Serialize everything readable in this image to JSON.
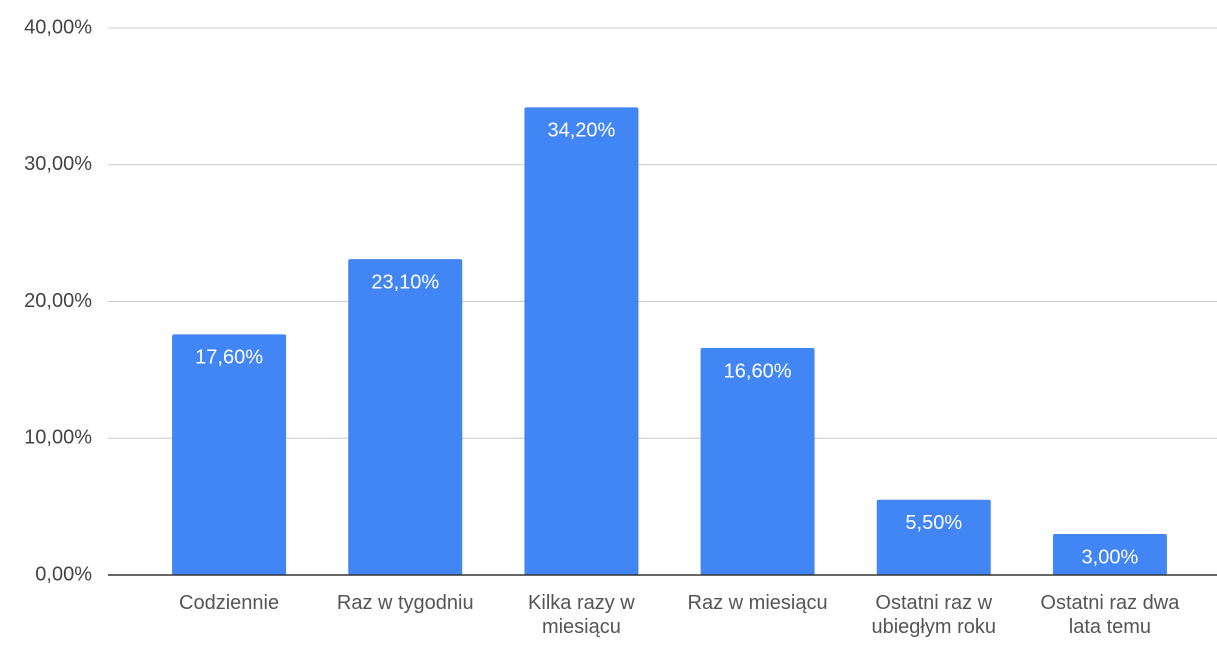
{
  "chart_data": {
    "type": "bar",
    "categories": [
      "Codziennie",
      "Raz w tygodniu",
      "Kilka razy w miesiącu",
      "Raz w miesiącu",
      "Ostatni raz w ubiegłym roku",
      "Ostatni raz dwa lata temu"
    ],
    "values": [
      17.6,
      23.1,
      34.2,
      16.6,
      5.5,
      3.0
    ],
    "value_labels": [
      "17,60%",
      "23,10%",
      "34,20%",
      "16,60%",
      "5,50%",
      "3,00%"
    ],
    "color": "#4285f4",
    "ylim": [
      0,
      40
    ],
    "yticks": [
      {
        "value": 0,
        "label": "0,00%"
      },
      {
        "value": 10,
        "label": "10,00%"
      },
      {
        "value": 20,
        "label": "20,00%"
      },
      {
        "value": 30,
        "label": "30,00%"
      },
      {
        "value": 40,
        "label": "40,00%"
      }
    ],
    "grid": true
  }
}
